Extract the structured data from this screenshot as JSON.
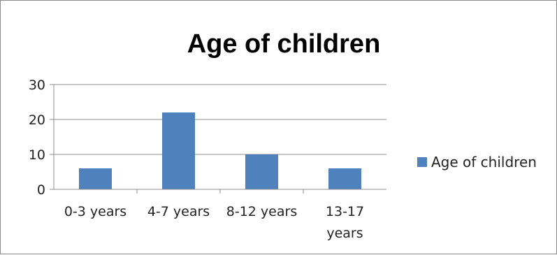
{
  "chart_data": {
    "type": "bar",
    "title": "Age of children",
    "categories": [
      "0-3 years",
      "4-7 years",
      "8-12 years",
      "13-17 years"
    ],
    "series": [
      {
        "name": "Age of children",
        "values": [
          6,
          22,
          10,
          6
        ],
        "color": "#4f81bd"
      }
    ],
    "yticks": [
      "0",
      "10",
      "20",
      "30"
    ],
    "ylim": [
      0,
      30
    ],
    "grid": true,
    "legend": "right"
  }
}
